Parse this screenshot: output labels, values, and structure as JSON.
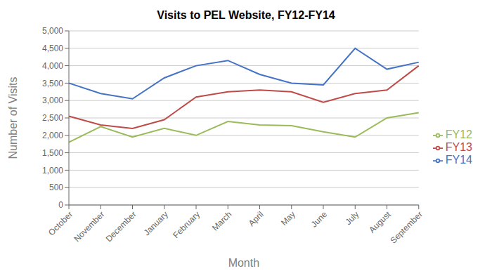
{
  "chart_data": {
    "type": "line",
    "title": "Visits to PEL Website, FY12-FY14",
    "x_label": "Month",
    "y_label": "Number of Visits",
    "categories": [
      "October",
      "November",
      "December",
      "January",
      "February",
      "March",
      "April",
      "May",
      "June",
      "July",
      "August",
      "September"
    ],
    "series": [
      {
        "name": "FY14",
        "color": "#4472C4",
        "values": [
          3500,
          3200,
          3050,
          3650,
          4000,
          4150,
          3750,
          3500,
          3450,
          4500,
          3900,
          4100
        ]
      },
      {
        "name": "FY13",
        "color": "#BE4B48",
        "values": [
          2550,
          2300,
          2200,
          2450,
          3100,
          3250,
          3300,
          3250,
          2950,
          3200,
          3300,
          4000
        ]
      },
      {
        "name": "FY12",
        "color": "#9BBB59",
        "values": [
          1800,
          2250,
          1950,
          2200,
          2000,
          2400,
          2300,
          2280,
          2100,
          1950,
          2500,
          2650
        ]
      }
    ],
    "ylim": [
      0,
      5000
    ],
    "yticks": [
      0,
      500,
      {
        "value": 1000,
        "label": "1,000"
      },
      {
        "value": 1500,
        "label": "1,500"
      },
      {
        "value": 2000,
        "label": "2,000"
      },
      {
        "value": 2500,
        "label": "2,500"
      },
      {
        "value": 3000,
        "label": "3,000"
      },
      {
        "value": 3500,
        "label": "3,500"
      },
      {
        "value": 4000,
        "label": "4,000"
      },
      {
        "value": 4500,
        "label": "4,500"
      },
      {
        "value": 5000,
        "label": "5,000"
      }
    ],
    "grid": true,
    "legend": "right"
  }
}
